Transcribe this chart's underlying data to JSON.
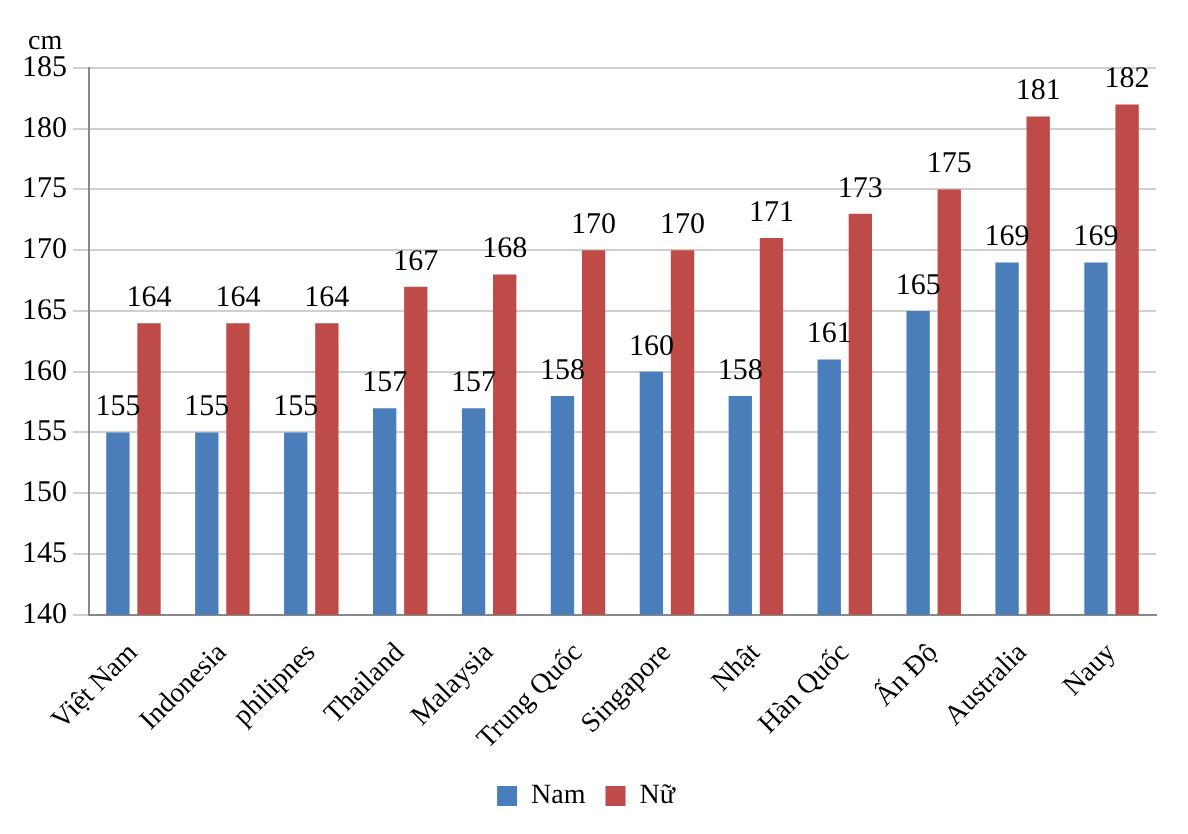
{
  "chart_data": {
    "type": "bar",
    "ylabel": "cm",
    "categories": [
      "Việt Nam",
      "Indonesia",
      "philipnes",
      "Thailand",
      "Malaysia",
      "Trung Quốc",
      "Singapore",
      "Nhật",
      "Hàn Quốc",
      "Ấn Độ",
      "Australia",
      "Nauy"
    ],
    "series": [
      {
        "name": "Nam",
        "color": "#4a7ebb",
        "values": [
          155,
          155,
          155,
          157,
          157,
          158,
          160,
          158,
          161,
          165,
          169,
          169
        ]
      },
      {
        "name": "Nữ",
        "color": "#be4b48",
        "values": [
          164,
          164,
          164,
          167,
          168,
          170,
          170,
          171,
          173,
          175,
          181,
          182
        ]
      }
    ],
    "ylim": [
      140,
      185
    ],
    "yticks": [
      140,
      145,
      150,
      155,
      160,
      165,
      170,
      175,
      180,
      185
    ],
    "grid": "y",
    "legend": "bottom",
    "data_labels": true
  }
}
